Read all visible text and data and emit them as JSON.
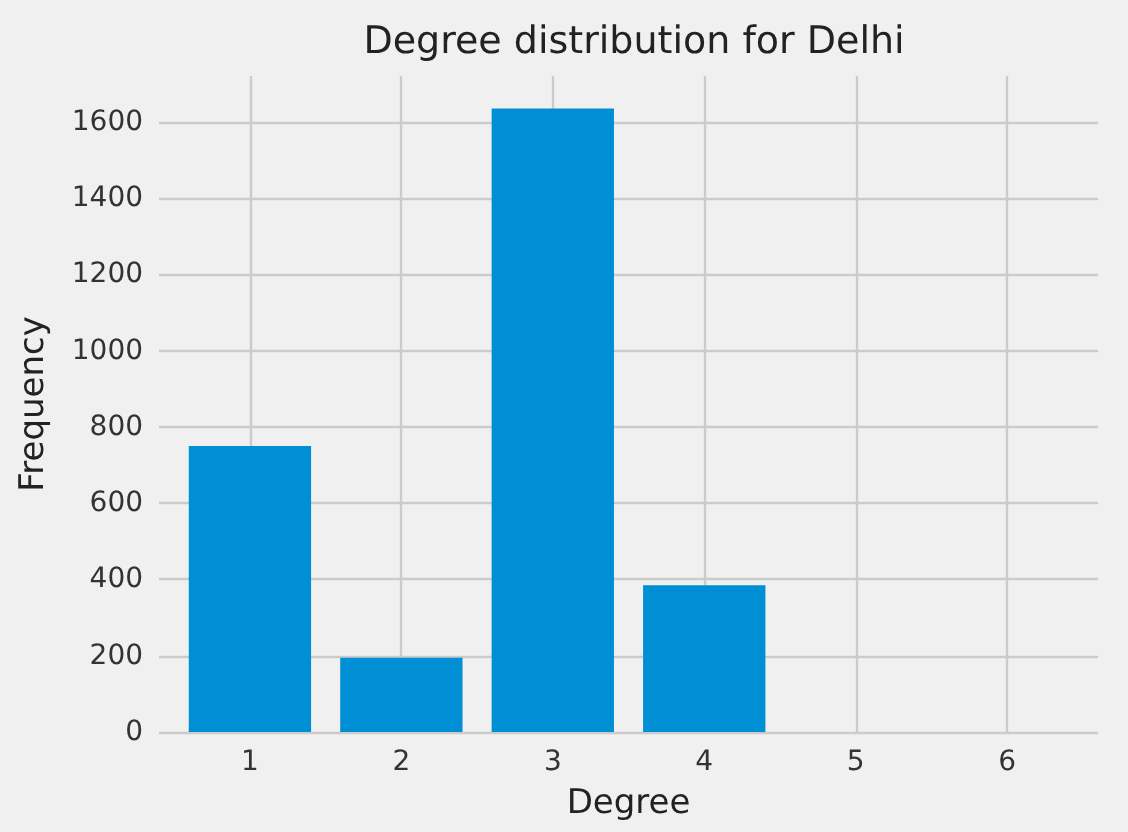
{
  "chart_data": {
    "type": "bar",
    "title": "Degree distribution for Delhi",
    "xlabel": "Degree",
    "ylabel": "Frequency",
    "x": [
      1,
      2,
      3,
      4
    ],
    "values": [
      750,
      195,
      1635,
      385
    ],
    "color": "#008fd5",
    "xlim": [
      0.4,
      6.6
    ],
    "xticks": [
      1,
      2,
      3,
      4,
      5,
      6
    ],
    "ylim": [
      0,
      1720
    ],
    "yticks": [
      0,
      200,
      400,
      600,
      800,
      1000,
      1200,
      1400,
      1600
    ],
    "grid": true
  }
}
